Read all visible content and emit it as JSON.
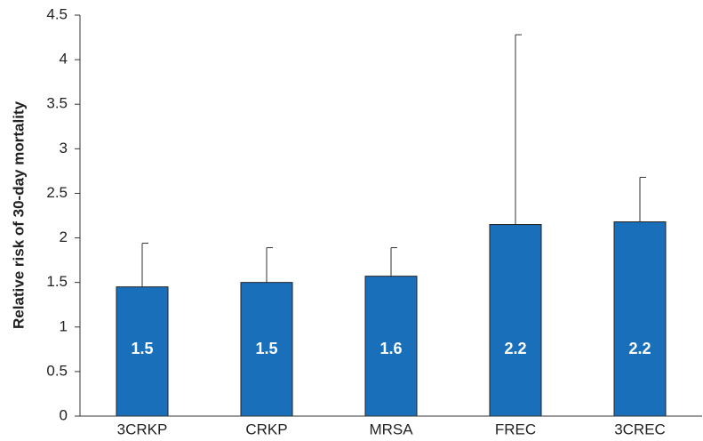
{
  "chart_data": {
    "type": "bar",
    "y_label": "Relative risk of 30-day mortality",
    "categories": [
      "3CRKP",
      "CRKP",
      "MRSA",
      "FREC",
      "3CREC"
    ],
    "values": [
      1.45,
      1.5,
      1.57,
      2.15,
      2.18
    ],
    "value_labels": [
      "1.5",
      "1.5",
      "1.6",
      "2.2",
      "2.2"
    ],
    "upper": [
      1.94,
      1.89,
      1.89,
      4.28,
      2.68
    ],
    "color": "#1a6fba",
    "ylim": [
      0,
      4.5
    ],
    "yticks": [
      0,
      0.5,
      1,
      1.5,
      2,
      2.5,
      3,
      3.5,
      4,
      4.5
    ]
  }
}
